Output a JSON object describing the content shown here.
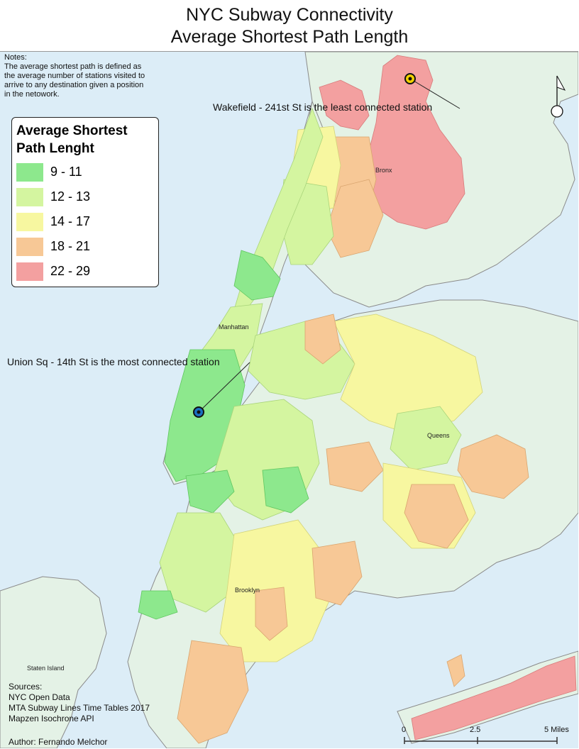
{
  "title": {
    "line1": "NYC Subway Connectivity",
    "line2": "Average Shortest Path Length"
  },
  "notes": "Notes:\nThe average shortest path is defined as\nthe average number of stations visited to\narrive to any destination given a position\nin the netowork.",
  "legend": {
    "title": "Average Shortest\nPath Lenght",
    "classes": [
      {
        "label": "9 - 11",
        "color": "#8de88d"
      },
      {
        "label": "12 - 13",
        "color": "#d4f5a0"
      },
      {
        "label": "14 - 17",
        "color": "#f7f7a0"
      },
      {
        "label": "18 - 21",
        "color": "#f7c896"
      },
      {
        "label": "22 - 29",
        "color": "#f3a0a0"
      }
    ]
  },
  "colors": {
    "water": "#dcedf7",
    "land": "#e4f2e6",
    "shoreline": "#8a8a8a"
  },
  "places": {
    "bronx": "Bronx",
    "manhattan": "Manhattan",
    "queens": "Queens",
    "brooklyn": "Brooklyn",
    "staten_island": "Staten Island"
  },
  "callouts": {
    "least": "Wakefield - 241st St is the least connected station",
    "most": "Union Sq - 14th St is the most connected station"
  },
  "sources": "Sources:\nNYC Open Data\nMTA Subway Lines Time Tables 2017\nMapzen Isochrone API",
  "author": "Author: Fernando Melchor",
  "scale_bar": {
    "labels": [
      "0",
      "2.5",
      "5 Miles"
    ]
  },
  "north_arrow": "north-arrow-icon"
}
